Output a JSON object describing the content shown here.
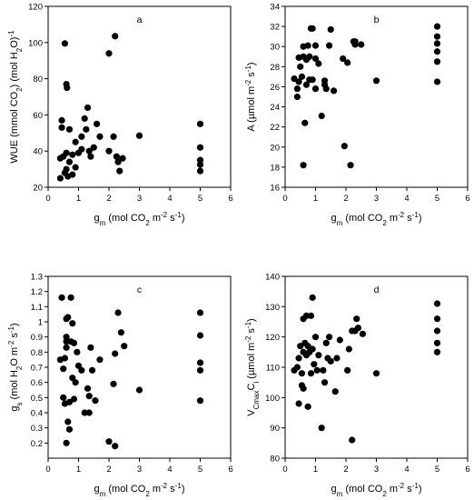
{
  "chart_data": [
    {
      "type": "scatter",
      "panel_label": "a",
      "xlabel": [
        "g",
        "m",
        " (mol CO",
        "2",
        " m",
        "-2",
        " s",
        "-1",
        ")"
      ],
      "ylabel": [
        "WUE (mmol CO",
        "2",
        ") (mol H",
        "2",
        "O)",
        "-1"
      ],
      "xlim": [
        0,
        6
      ],
      "ylim": [
        20,
        120
      ],
      "xticks": [
        0,
        1,
        2,
        3,
        4,
        5,
        6
      ],
      "yticks": [
        20,
        40,
        60,
        80,
        100,
        120
      ],
      "points": [
        [
          0.4,
          25
        ],
        [
          0.4,
          36
        ],
        [
          0.45,
          57
        ],
        [
          0.45,
          53
        ],
        [
          0.5,
          37
        ],
        [
          0.55,
          99.5
        ],
        [
          0.6,
          77
        ],
        [
          0.62,
          75
        ],
        [
          0.55,
          28
        ],
        [
          0.6,
          30
        ],
        [
          0.65,
          26
        ],
        [
          0.7,
          34
        ],
        [
          0.7,
          52
        ],
        [
          0.6,
          39
        ],
        [
          0.8,
          38
        ],
        [
          0.8,
          27
        ],
        [
          0.9,
          31
        ],
        [
          0.9,
          45
        ],
        [
          1.0,
          39
        ],
        [
          1.1,
          41
        ],
        [
          1.1,
          48
        ],
        [
          1.2,
          58
        ],
        [
          1.25,
          52
        ],
        [
          1.3,
          64
        ],
        [
          1.35,
          40
        ],
        [
          1.4,
          37
        ],
        [
          1.5,
          42
        ],
        [
          1.6,
          55
        ],
        [
          1.7,
          48
        ],
        [
          2.0,
          94
        ],
        [
          2.0,
          40
        ],
        [
          2.15,
          48
        ],
        [
          2.2,
          103.5
        ],
        [
          2.25,
          37
        ],
        [
          2.3,
          34
        ],
        [
          2.35,
          29
        ],
        [
          2.45,
          36
        ],
        [
          3.0,
          48.5
        ],
        [
          5.0,
          55
        ],
        [
          5.0,
          42
        ],
        [
          5.0,
          35
        ],
        [
          5.0,
          32.5
        ],
        [
          5.0,
          29
        ]
      ]
    },
    {
      "type": "scatter",
      "panel_label": "b",
      "xlabel": [
        "g",
        "m",
        " (mol CO",
        "2",
        " m",
        "-2",
        " s",
        "-1",
        ")"
      ],
      "ylabel": [
        "A (µmol m",
        "-2",
        " s",
        "-1",
        ")"
      ],
      "xlim": [
        0,
        6
      ],
      "ylim": [
        16,
        34
      ],
      "xticks": [
        0,
        1,
        2,
        3,
        4,
        5,
        6
      ],
      "yticks": [
        16,
        18,
        20,
        22,
        24,
        26,
        28,
        30,
        32,
        34
      ],
      "points": [
        [
          0.3,
          26.8
        ],
        [
          0.4,
          25.8
        ],
        [
          0.4,
          25.0
        ],
        [
          0.45,
          28.9
        ],
        [
          0.45,
          26.5
        ],
        [
          0.5,
          28.0
        ],
        [
          0.55,
          27.0
        ],
        [
          0.6,
          30.0
        ],
        [
          0.6,
          29.0
        ],
        [
          0.6,
          18.2
        ],
        [
          0.65,
          22.4
        ],
        [
          0.7,
          28.7
        ],
        [
          0.7,
          26.2
        ],
        [
          0.75,
          30.1
        ],
        [
          0.8,
          29.0
        ],
        [
          0.8,
          26.7
        ],
        [
          0.85,
          31.8
        ],
        [
          0.9,
          31.8
        ],
        [
          0.9,
          26.7
        ],
        [
          1.0,
          30.1
        ],
        [
          1.0,
          28.8
        ],
        [
          1.0,
          25.8
        ],
        [
          1.1,
          28.3
        ],
        [
          1.2,
          23.1
        ],
        [
          1.3,
          26.6
        ],
        [
          1.3,
          26.2
        ],
        [
          1.35,
          25.8
        ],
        [
          1.45,
          30.1
        ],
        [
          1.5,
          31.7
        ],
        [
          1.6,
          25.6
        ],
        [
          1.9,
          28.8
        ],
        [
          1.95,
          20.1
        ],
        [
          2.05,
          28.4
        ],
        [
          2.15,
          18.2
        ],
        [
          2.25,
          30.5
        ],
        [
          2.3,
          30.2
        ],
        [
          2.3,
          30.5
        ],
        [
          2.5,
          30.2
        ],
        [
          3.0,
          26.6
        ],
        [
          5.0,
          32.0
        ],
        [
          5.0,
          31.0
        ],
        [
          5.0,
          30.3
        ],
        [
          5.0,
          29.5
        ],
        [
          5.0,
          28.5
        ],
        [
          5.0,
          26.5
        ]
      ]
    },
    {
      "type": "scatter",
      "panel_label": "c",
      "xlabel": [
        "g",
        "m",
        " (mol CO",
        "2",
        " m",
        "-2",
        " s",
        "-1",
        ")"
      ],
      "ylabel": [
        "g",
        "s",
        " (mol H",
        "2",
        "O m",
        "-2",
        " s",
        "-1",
        ")"
      ],
      "xlim": [
        0,
        6
      ],
      "ylim": [
        0.1,
        1.3
      ],
      "xticks": [
        0,
        1,
        2,
        3,
        4,
        5,
        6
      ],
      "yticks": [
        0.2,
        0.3,
        0.4,
        0.5,
        0.6,
        0.7,
        0.8,
        0.9,
        1.0,
        1.1,
        1.2,
        1.3
      ],
      "points": [
        [
          0.4,
          0.75
        ],
        [
          0.45,
          1.16
        ],
        [
          0.5,
          0.69
        ],
        [
          0.55,
          0.76
        ],
        [
          0.5,
          0.5
        ],
        [
          0.55,
          0.46
        ],
        [
          0.6,
          0.87
        ],
        [
          0.6,
          0.83
        ],
        [
          0.6,
          0.9
        ],
        [
          0.6,
          0.2
        ],
        [
          0.6,
          1.02
        ],
        [
          0.65,
          1.03
        ],
        [
          0.65,
          0.34
        ],
        [
          0.7,
          0.29
        ],
        [
          0.7,
          0.47
        ],
        [
          0.75,
          1.16
        ],
        [
          0.75,
          0.87
        ],
        [
          0.8,
          0.63
        ],
        [
          0.8,
          0.99
        ],
        [
          0.85,
          0.49
        ],
        [
          0.85,
          0.86
        ],
        [
          0.9,
          0.6
        ],
        [
          0.95,
          0.8
        ],
        [
          1.0,
          0.71
        ],
        [
          1.1,
          0.68
        ],
        [
          1.2,
          0.4
        ],
        [
          1.3,
          0.56
        ],
        [
          1.35,
          0.51
        ],
        [
          1.35,
          0.4
        ],
        [
          1.4,
          0.83
        ],
        [
          1.45,
          0.68
        ],
        [
          1.55,
          0.48
        ],
        [
          1.7,
          0.75
        ],
        [
          2.0,
          0.21
        ],
        [
          2.15,
          0.59
        ],
        [
          2.2,
          0.18
        ],
        [
          2.2,
          0.79
        ],
        [
          2.3,
          1.06
        ],
        [
          2.4,
          0.93
        ],
        [
          2.5,
          0.84
        ],
        [
          3.0,
          0.55
        ],
        [
          5.0,
          1.06
        ],
        [
          5.0,
          0.91
        ],
        [
          5.0,
          0.73
        ],
        [
          5.0,
          0.68
        ],
        [
          5.0,
          0.48
        ]
      ]
    },
    {
      "type": "scatter",
      "panel_label": "d",
      "xlabel": [
        "g",
        "m",
        " (mol CO",
        "2",
        " m",
        "-2",
        " s",
        "-1",
        ")"
      ],
      "ylabel": [
        "V",
        "Cmax",
        "C",
        "i",
        " (µmol m",
        "-2",
        " s",
        "-1",
        ")"
      ],
      "xlim": [
        0,
        6
      ],
      "ylim": [
        80,
        140
      ],
      "xticks": [
        0,
        1,
        2,
        3,
        4,
        5,
        6
      ],
      "yticks": [
        80,
        90,
        100,
        110,
        120,
        130,
        140
      ],
      "points": [
        [
          0.3,
          109
        ],
        [
          0.4,
          110
        ],
        [
          0.45,
          113
        ],
        [
          0.45,
          98
        ],
        [
          0.5,
          117
        ],
        [
          0.55,
          108
        ],
        [
          0.55,
          104
        ],
        [
          0.6,
          115
        ],
        [
          0.6,
          103
        ],
        [
          0.6,
          126
        ],
        [
          0.65,
          118
        ],
        [
          0.7,
          127
        ],
        [
          0.7,
          114
        ],
        [
          0.75,
          97
        ],
        [
          0.75,
          117
        ],
        [
          0.8,
          115
        ],
        [
          0.85,
          108
        ],
        [
          0.85,
          127
        ],
        [
          0.9,
          133
        ],
        [
          0.9,
          116
        ],
        [
          0.95,
          111
        ],
        [
          1.0,
          120
        ],
        [
          1.05,
          109
        ],
        [
          1.1,
          114
        ],
        [
          1.2,
          90
        ],
        [
          1.25,
          109
        ],
        [
          1.3,
          105
        ],
        [
          1.35,
          118
        ],
        [
          1.4,
          113
        ],
        [
          1.45,
          120
        ],
        [
          1.5,
          112
        ],
        [
          1.65,
          102
        ],
        [
          1.7,
          113
        ],
        [
          1.8,
          119
        ],
        [
          2.05,
          109
        ],
        [
          2.1,
          116
        ],
        [
          2.2,
          86
        ],
        [
          2.2,
          122
        ],
        [
          2.3,
          122
        ],
        [
          2.35,
          126
        ],
        [
          2.4,
          123
        ],
        [
          2.55,
          121
        ],
        [
          3.0,
          108
        ],
        [
          5.0,
          131
        ],
        [
          5.0,
          126
        ],
        [
          5.0,
          122
        ],
        [
          5.0,
          118
        ],
        [
          5.0,
          115
        ]
      ]
    }
  ]
}
